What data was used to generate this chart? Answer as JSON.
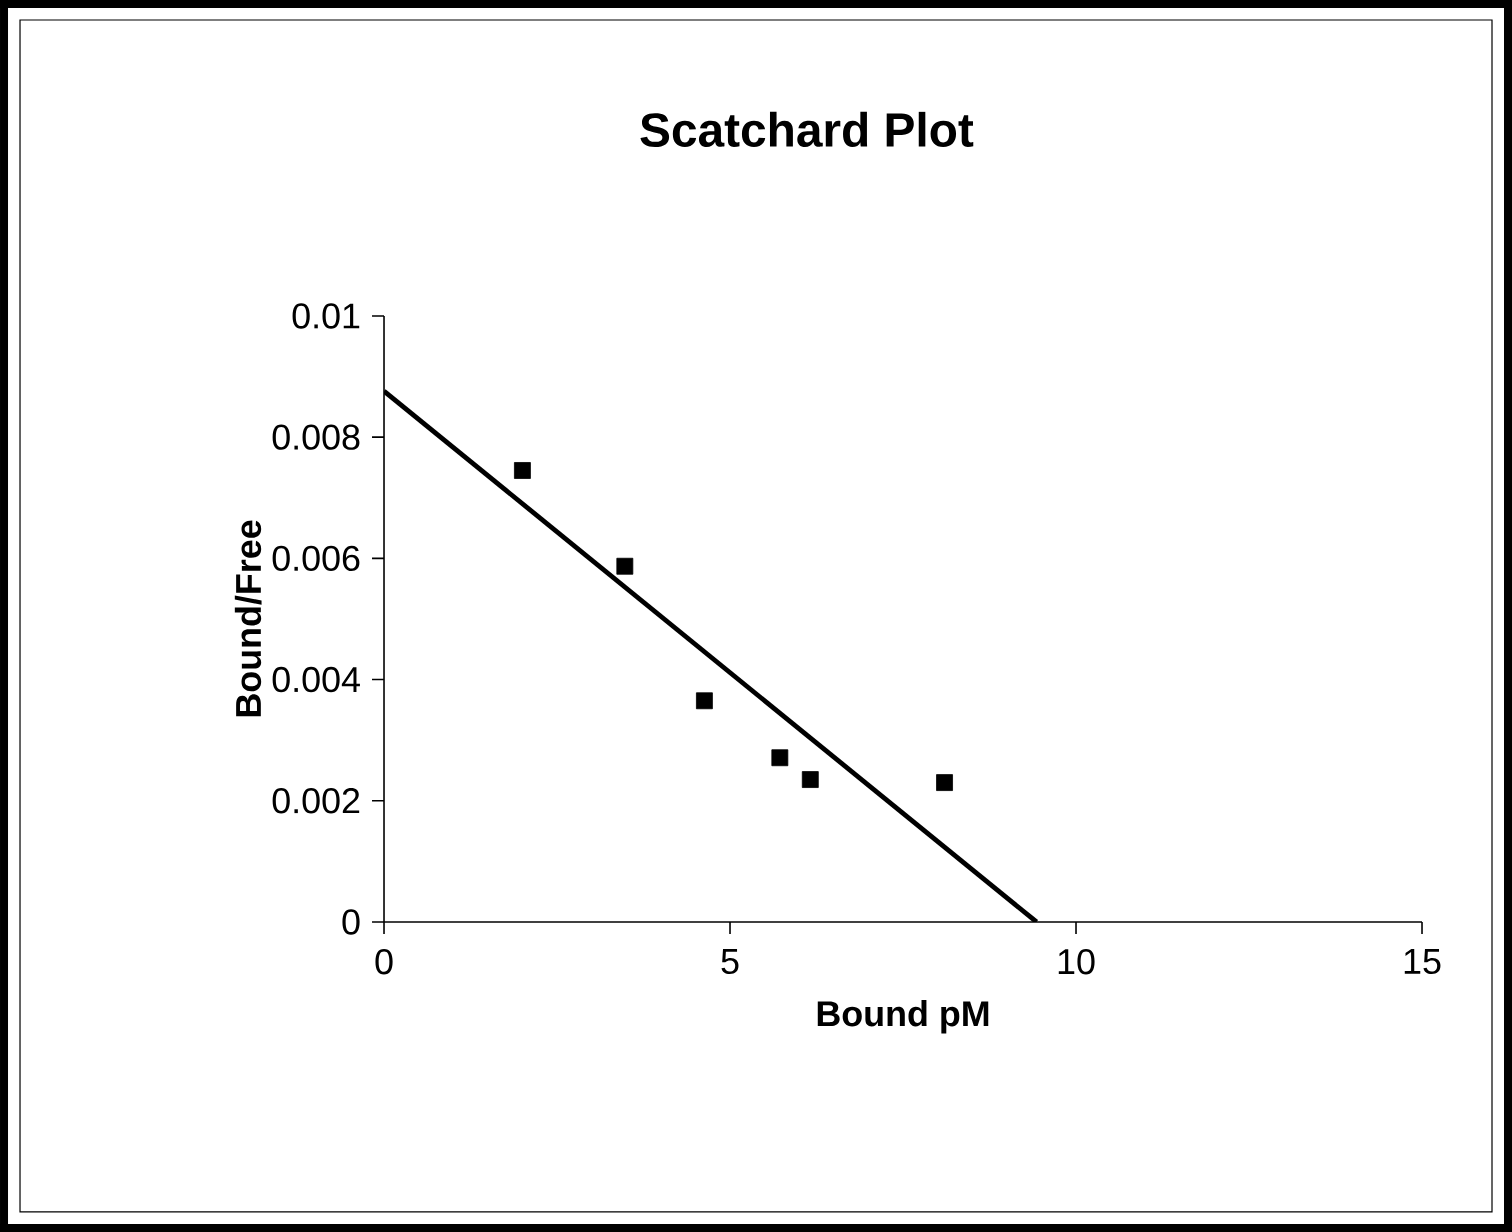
{
  "chart_data": {
    "type": "scatter",
    "title": "Scatchard Plot",
    "xlabel": "Bound pM",
    "ylabel": "Bound/Free",
    "xlim": [
      0,
      15
    ],
    "xticks": [
      0,
      5,
      10,
      15
    ],
    "ylim": [
      0,
      0.01
    ],
    "yticks": [
      0,
      0.002,
      0.004,
      0.006,
      0.008,
      0.01
    ],
    "marker": "square",
    "grid": false,
    "legend": false,
    "series": [
      {
        "color": "#000000",
        "x": [
          2.0,
          3.48,
          4.63,
          5.72,
          6.16,
          8.1
        ],
        "values": [
          0.00745,
          0.00587,
          0.00365,
          0.00271,
          0.00235,
          0.0023
        ]
      },
      {
        "type": "line",
        "color": "#000000",
        "marker": "none",
        "x": [
          0,
          9.43
        ],
        "values": [
          0.00876,
          0
        ]
      }
    ]
  }
}
